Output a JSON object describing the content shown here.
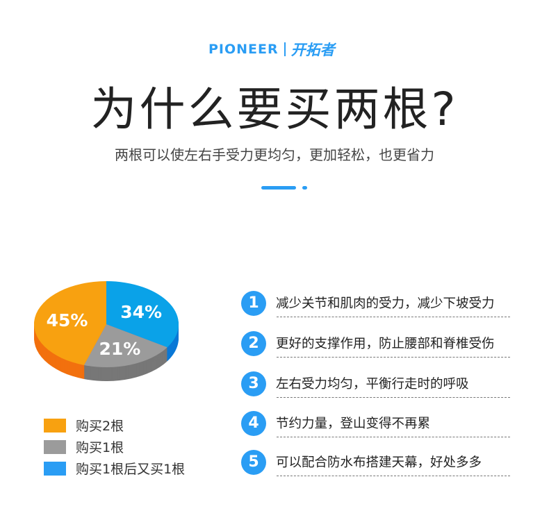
{
  "brand": {
    "en": "PIONEER",
    "cn": "开拓者",
    "color": "#2a9df4"
  },
  "title": "为什么要买两根?",
  "subtitle": "两根可以使左右手受力更均匀，更加轻松，也更省力",
  "chart_data": {
    "type": "pie",
    "categories": [
      "购买1根后又买1根",
      "购买1根",
      "购买2根"
    ],
    "values": [
      34,
      21,
      45
    ],
    "labels": [
      "34%",
      "21%",
      "45%"
    ],
    "colors": [
      "#0aa2e8",
      "#9b9b9b",
      "#f8a110"
    ],
    "side_colors": [
      "#0a78d6",
      "#777777",
      "#f2700e"
    ],
    "legend_position": "bottom-left"
  },
  "legend": [
    {
      "label": "购买2根",
      "color": "#f8a110"
    },
    {
      "label": "购买1根",
      "color": "#9b9b9b"
    },
    {
      "label": "购买1根后又买1根",
      "color": "#2a9df4"
    }
  ],
  "reasons": [
    {
      "num": "1",
      "text": "减少关节和肌肉的受力，减少下坡受力"
    },
    {
      "num": "2",
      "text": "更好的支撑作用，防止腰部和脊椎受伤"
    },
    {
      "num": "3",
      "text": "左右受力均匀，平衡行走时的呼吸"
    },
    {
      "num": "4",
      "text": "节约力量，登山变得不再累"
    },
    {
      "num": "5",
      "text": "可以配合防水布搭建天幕，好处多多"
    }
  ]
}
